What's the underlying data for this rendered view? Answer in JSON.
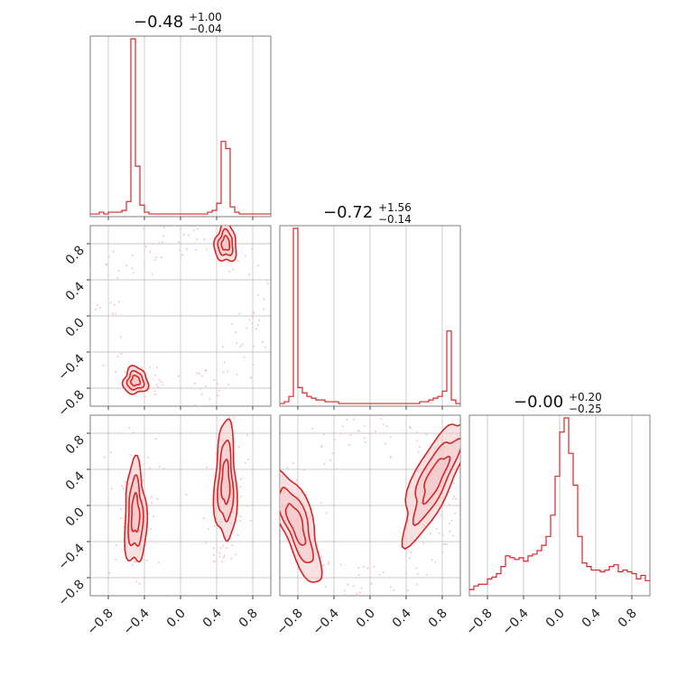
{
  "colors": {
    "series": "#d62728",
    "fill": "#f4c9cb",
    "grid": "#c8c8c8",
    "frame": "#7f7f7f"
  },
  "chart_data": {
    "type": "corner",
    "ticks": [
      -0.8,
      -0.4,
      0.0,
      0.4,
      0.8
    ],
    "tick_labels": [
      "−0.8",
      "−0.4",
      "0.0",
      "0.4",
      "0.8"
    ],
    "range": [
      -1,
      1
    ],
    "grid": true,
    "parameters": [
      {
        "median": "−0.48",
        "plus": "+1.00",
        "minus": "−0.04"
      },
      {
        "median": "−0.72",
        "plus": "+1.56",
        "minus": "−0.14"
      },
      {
        "median": "−0.00",
        "plus": "+0.20",
        "minus": "−0.25"
      }
    ],
    "histograms": [
      {
        "edges_start": -1,
        "bin_width": 0.05,
        "counts": [
          0.01,
          0.01,
          0.02,
          0.01,
          0.02,
          0.02,
          0.02,
          0.03,
          0.08,
          1.0,
          0.28,
          0.06,
          0.02,
          0.01,
          0.01,
          0.01,
          0.01,
          0.01,
          0.01,
          0.01,
          0.01,
          0.01,
          0.01,
          0.01,
          0.01,
          0.01,
          0.02,
          0.03,
          0.07,
          0.42,
          0.38,
          0.05,
          0.02,
          0.01,
          0.01,
          0.01,
          0.01,
          0.01,
          0.01,
          0.01
        ]
      },
      {
        "edges_start": -1,
        "bin_width": 0.05,
        "counts": [
          0.01,
          0.02,
          0.05,
          1.0,
          0.1,
          0.07,
          0.05,
          0.04,
          0.03,
          0.03,
          0.02,
          0.02,
          0.02,
          0.01,
          0.01,
          0.01,
          0.01,
          0.01,
          0.01,
          0.01,
          0.01,
          0.01,
          0.01,
          0.01,
          0.01,
          0.01,
          0.01,
          0.01,
          0.01,
          0.01,
          0.01,
          0.02,
          0.02,
          0.03,
          0.04,
          0.05,
          0.08,
          0.42,
          0.03,
          0.01
        ]
      },
      {
        "edges_start": -1,
        "bin_width": 0.05,
        "counts": [
          0.03,
          0.05,
          0.06,
          0.06,
          0.09,
          0.1,
          0.12,
          0.16,
          0.22,
          0.21,
          0.2,
          0.21,
          0.19,
          0.22,
          0.23,
          0.25,
          0.28,
          0.33,
          0.45,
          0.67,
          0.92,
          1.0,
          0.8,
          0.62,
          0.33,
          0.18,
          0.16,
          0.14,
          0.14,
          0.13,
          0.14,
          0.16,
          0.17,
          0.13,
          0.14,
          0.13,
          0.12,
          0.09,
          0.11,
          0.08
        ]
      }
    ],
    "pairs": [
      {
        "x_param": 0,
        "y_param": 1,
        "clusters": [
          {
            "cx": 0.5,
            "cy": 0.8,
            "sx": 0.04,
            "sy": 0.07,
            "rot": 0
          },
          {
            "cx": -0.5,
            "cy": -0.72,
            "sx": 0.045,
            "sy": 0.05,
            "rot": 0
          }
        ]
      },
      {
        "x_param": 0,
        "y_param": 2,
        "clusters": [
          {
            "cx": -0.5,
            "cy": -0.1,
            "sx": 0.04,
            "sy": 0.19,
            "rot": 0
          },
          {
            "cx": 0.5,
            "cy": 0.25,
            "sx": 0.04,
            "sy": 0.22,
            "rot": 0
          }
        ]
      },
      {
        "x_param": 1,
        "y_param": 2,
        "clusters": [
          {
            "cx": -0.82,
            "cy": -0.2,
            "sx": 0.06,
            "sy": 0.22,
            "rot": 0.35
          },
          {
            "cx": 0.72,
            "cy": 0.3,
            "sx": 0.07,
            "sy": 0.25,
            "rot": -0.45
          }
        ]
      }
    ]
  }
}
